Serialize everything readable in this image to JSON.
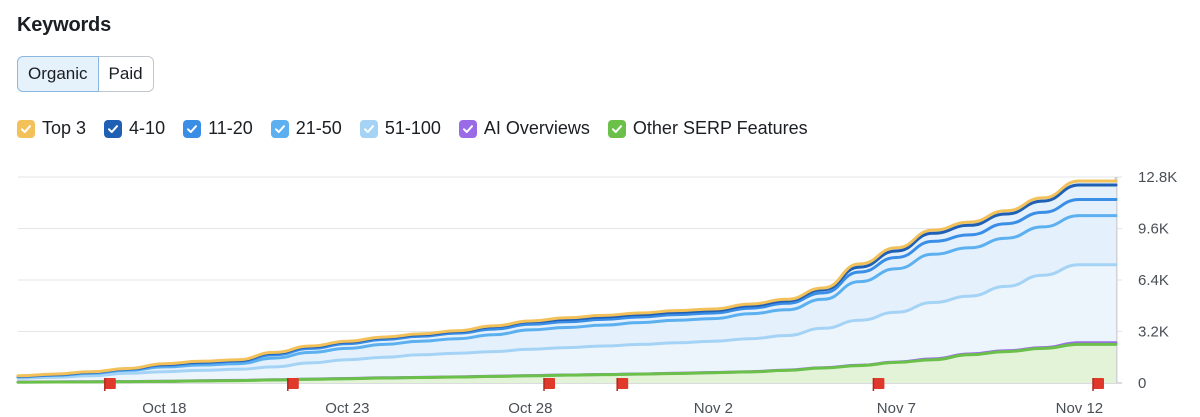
{
  "header": {
    "title": "Keywords"
  },
  "tabs": [
    {
      "label": "Organic",
      "active": true
    },
    {
      "label": "Paid",
      "active": false
    }
  ],
  "colors": {
    "top3": "#f2c15a",
    "p4_10": "#1f5fb4",
    "p11_20": "#3b8ee6",
    "p21_50": "#5cb0ef",
    "p51_100": "#a5d3f5",
    "ai_overviews": "#9a6be6",
    "other_serp": "#6bc04a",
    "flag": "#e0392b"
  },
  "chart_data": {
    "type": "area",
    "title": "Keywords",
    "x": [
      "Oct 14",
      "Oct 15",
      "Oct 16",
      "Oct 17",
      "Oct 18",
      "Oct 19",
      "Oct 20",
      "Oct 21",
      "Oct 22",
      "Oct 23",
      "Oct 24",
      "Oct 25",
      "Oct 26",
      "Oct 27",
      "Oct 28",
      "Oct 29",
      "Oct 30",
      "Oct 31",
      "Nov 1",
      "Nov 2",
      "Nov 3",
      "Nov 4",
      "Nov 5",
      "Nov 6",
      "Nov 7",
      "Nov 8",
      "Nov 9",
      "Nov 10",
      "Nov 11",
      "Nov 12",
      "Nov 13"
    ],
    "xtick_labels": [
      "Oct 18",
      "Oct 23",
      "Oct 28",
      "Nov 2",
      "Nov 7",
      "Nov 12"
    ],
    "ytick_labels": [
      "0",
      "3.2K",
      "6.4K",
      "9.6K",
      "12.8K"
    ],
    "ylim": [
      0,
      12800
    ],
    "xlabel": "",
    "ylabel": "",
    "legend": [
      "Top 3",
      "4-10",
      "11-20",
      "21-50",
      "51-100",
      "AI Overviews",
      "Other SERP Features"
    ],
    "series": [
      {
        "name": "Top 3",
        "color_key": "top3",
        "values": [
          450,
          550,
          700,
          900,
          1200,
          1350,
          1450,
          1900,
          2300,
          2600,
          2850,
          3050,
          3250,
          3550,
          3850,
          4050,
          4200,
          4350,
          4500,
          4600,
          4900,
          5200,
          5900,
          7400,
          8400,
          9500,
          10000,
          10700,
          11500,
          12550,
          12550
        ]
      },
      {
        "name": "4-10",
        "color_key": "p4_10",
        "values": [
          430,
          530,
          680,
          880,
          1150,
          1300,
          1400,
          1850,
          2250,
          2550,
          2800,
          3000,
          3200,
          3500,
          3800,
          3950,
          4100,
          4250,
          4400,
          4500,
          4800,
          5100,
          5800,
          7200,
          8200,
          9300,
          9800,
          10500,
          11300,
          12300,
          12300
        ]
      },
      {
        "name": "11-20",
        "color_key": "p11_20",
        "values": [
          400,
          500,
          640,
          840,
          1100,
          1250,
          1350,
          1750,
          2150,
          2450,
          2700,
          2900,
          3100,
          3350,
          3650,
          3800,
          3950,
          4100,
          4250,
          4350,
          4650,
          4950,
          5600,
          6900,
          7800,
          8800,
          9200,
          9900,
          10600,
          11400,
          11400
        ]
      },
      {
        "name": "21-50",
        "color_key": "p21_50",
        "values": [
          380,
          470,
          600,
          790,
          1000,
          1120,
          1200,
          1550,
          1900,
          2150,
          2400,
          2600,
          2750,
          3000,
          3300,
          3450,
          3600,
          3750,
          3900,
          4000,
          4300,
          4550,
          5200,
          6300,
          7100,
          8000,
          8400,
          9000,
          9700,
          10400,
          10400
        ]
      },
      {
        "name": "51-100",
        "color_key": "p51_100",
        "values": [
          300,
          360,
          450,
          600,
          700,
          780,
          850,
          1000,
          1250,
          1450,
          1600,
          1750,
          1850,
          1950,
          2100,
          2200,
          2300,
          2400,
          2500,
          2600,
          2750,
          2950,
          3400,
          3900,
          4400,
          5000,
          5400,
          6000,
          6700,
          7350,
          7350
        ]
      },
      {
        "name": "AI Overviews",
        "color_key": "ai_overviews",
        "values": [
          60,
          70,
          80,
          90,
          110,
          140,
          160,
          200,
          240,
          280,
          320,
          350,
          380,
          420,
          460,
          500,
          530,
          560,
          600,
          650,
          700,
          800,
          950,
          1100,
          1300,
          1500,
          1800,
          2000,
          2200,
          2500,
          2500
        ]
      },
      {
        "name": "Other SERP Features",
        "color_key": "other_serp",
        "values": [
          50,
          60,
          70,
          80,
          100,
          130,
          150,
          190,
          230,
          270,
          310,
          340,
          370,
          410,
          450,
          490,
          520,
          550,
          590,
          640,
          690,
          780,
          930,
          1080,
          1280,
          1450,
          1750,
          1950,
          2150,
          2400,
          2400
        ]
      }
    ],
    "annotation_flags_at": [
      "Oct 17",
      "Oct 22",
      "Oct 29",
      "Oct 31",
      "Nov 7",
      "Nov 13"
    ]
  }
}
